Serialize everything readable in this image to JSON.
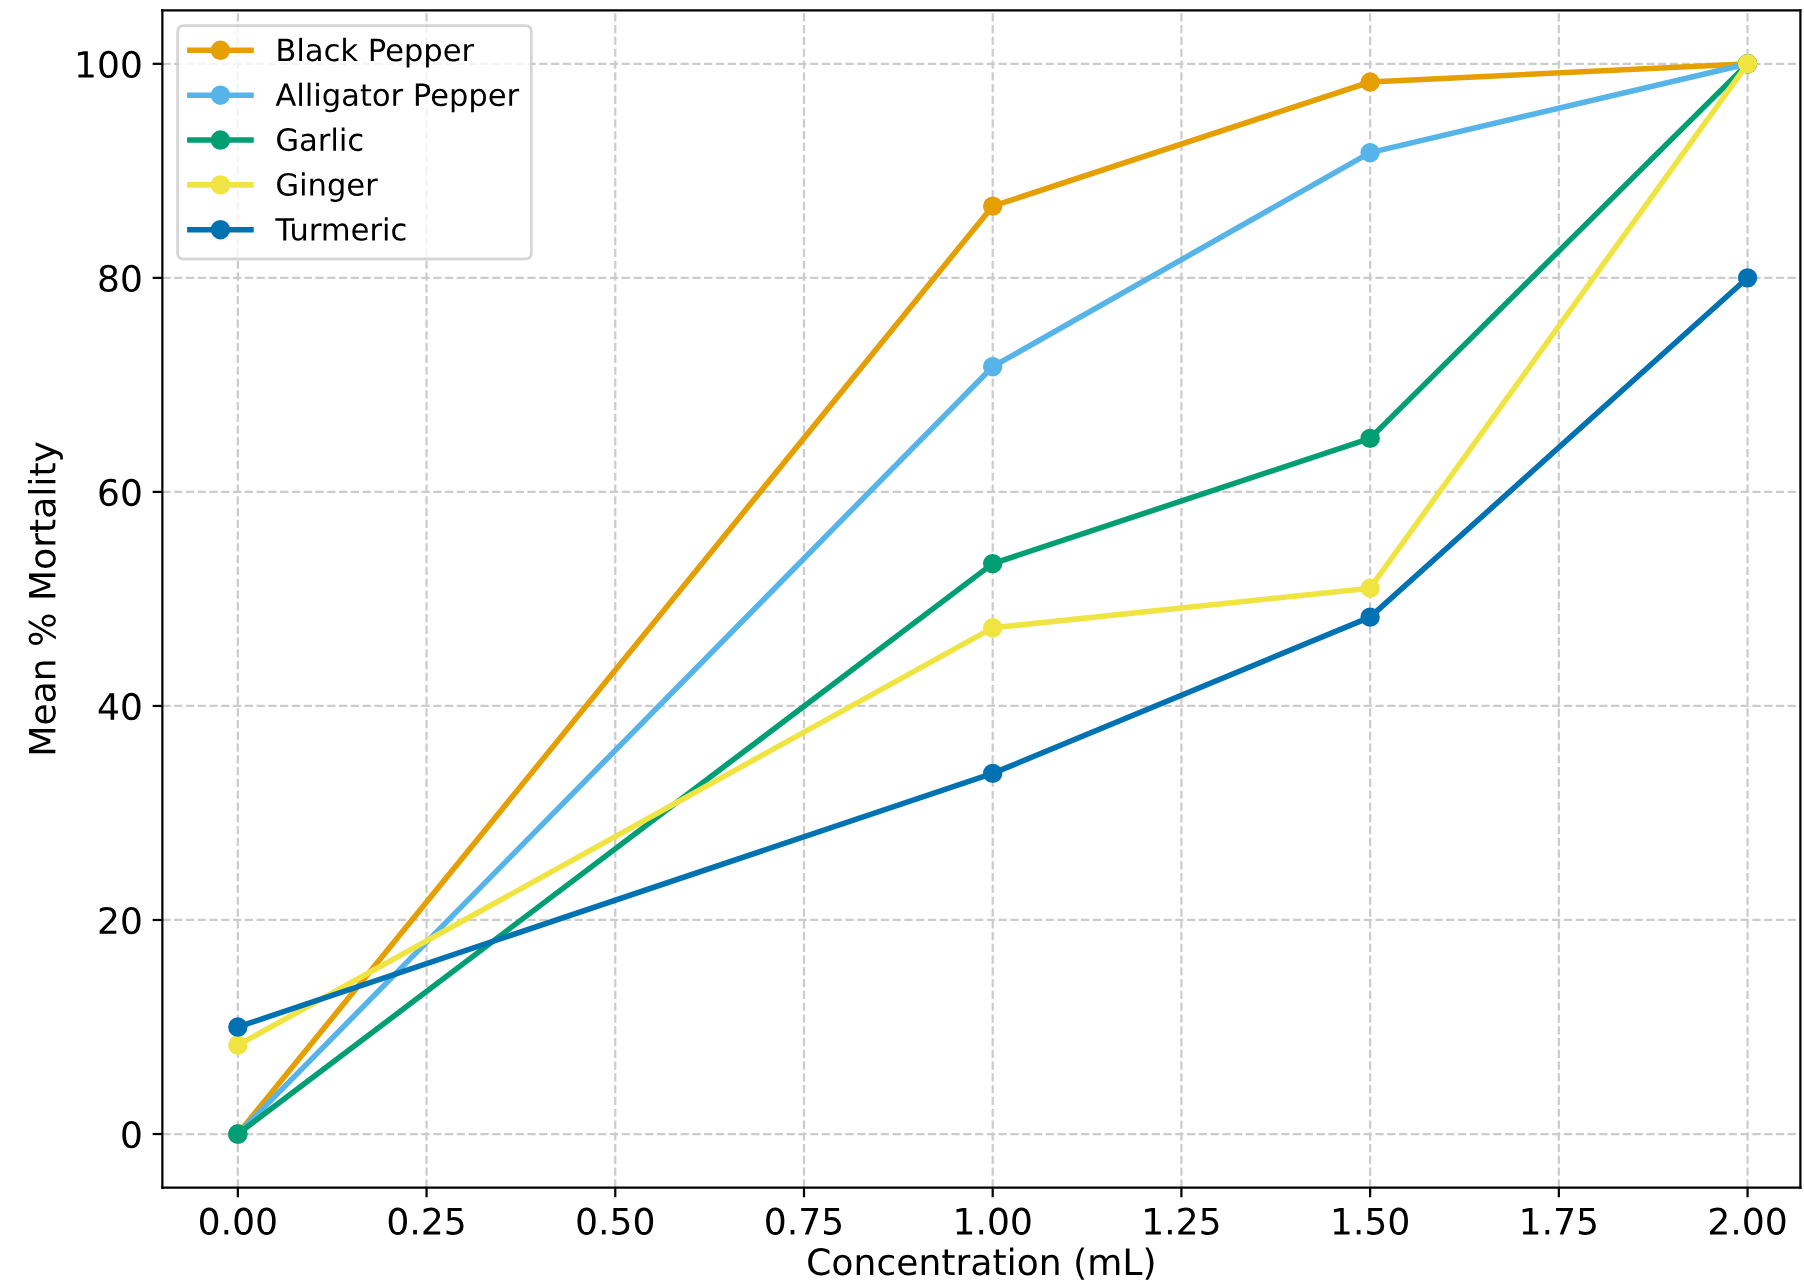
{
  "chart_data": {
    "type": "line",
    "xlabel": "Concentration (mL)",
    "ylabel": "Mean % Mortality",
    "x": [
      0.0,
      1.0,
      1.5,
      2.0
    ],
    "series": [
      {
        "name": "Black Pepper",
        "color": "#e69f00",
        "values": [
          0,
          86.7,
          98.3,
          100
        ]
      },
      {
        "name": "Alligator Pepper",
        "color": "#56b4e9",
        "values": [
          0,
          71.7,
          91.7,
          100
        ]
      },
      {
        "name": "Garlic",
        "color": "#009e73",
        "values": [
          0,
          53.3,
          65,
          100
        ]
      },
      {
        "name": "Ginger",
        "color": "#f0e442",
        "values": [
          8.3,
          47.3,
          51,
          100
        ]
      },
      {
        "name": "Turmeric",
        "color": "#0072b2",
        "values": [
          10,
          33.7,
          48.3,
          80
        ]
      }
    ],
    "xlim": [
      -0.1,
      2.07
    ],
    "ylim": [
      -5,
      105
    ],
    "xticks": [
      {
        "value": 0,
        "label": "0.00"
      },
      {
        "value": 0.25,
        "label": "0.25"
      },
      {
        "value": 0.5,
        "label": "0.50"
      },
      {
        "value": 0.75,
        "label": "0.75"
      },
      {
        "value": 1,
        "label": "1.00"
      },
      {
        "value": 1.25,
        "label": "1.25"
      },
      {
        "value": 1.5,
        "label": "1.50"
      },
      {
        "value": 1.75,
        "label": "1.75"
      },
      {
        "value": 2,
        "label": "2.00"
      }
    ],
    "yticks": [
      0,
      20,
      40,
      60,
      80,
      100
    ],
    "grid": true,
    "legend": "top left",
    "marker": "circle",
    "line_style": "solid"
  }
}
